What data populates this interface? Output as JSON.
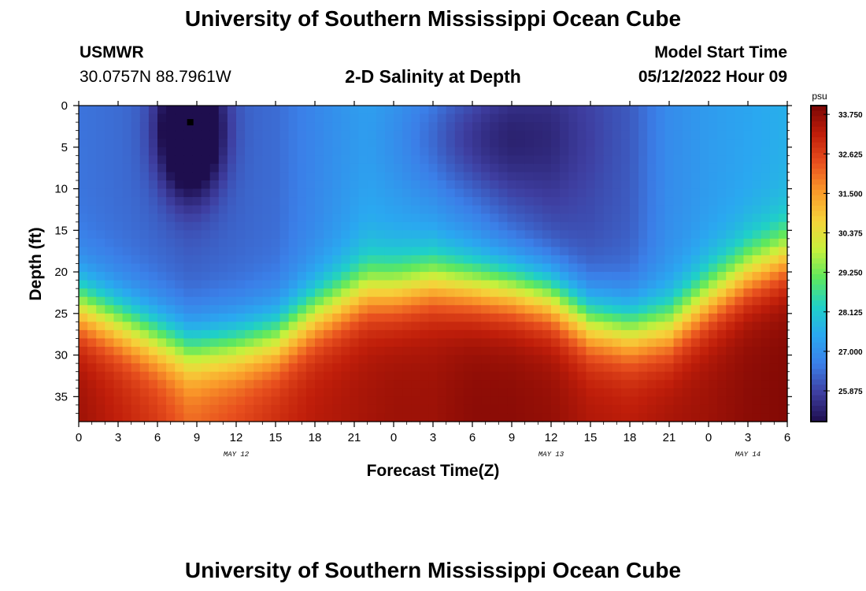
{
  "page": {
    "title_top": "University of Southern Mississippi Ocean Cube",
    "title_bottom": "University of Southern Mississippi Ocean Cube",
    "station": "USMWR",
    "coords": "30.0757N  88.7961W",
    "subtitle": "2-D Salinity at Depth",
    "model_start_label": "Model Start Time",
    "model_start_value": "05/12/2022 Hour 09"
  },
  "chart_data": {
    "type": "heatmap",
    "title": "2-D Salinity at Depth",
    "xlabel": "Forecast Time(Z)",
    "ylabel": "Depth (ft)",
    "x_tick_labels": [
      "0",
      "3",
      "6",
      "9",
      "12",
      "15",
      "18",
      "21",
      "0",
      "3",
      "6",
      "9",
      "12",
      "15",
      "18",
      "21",
      "0",
      "3",
      "6"
    ],
    "x_range_hours": [
      0,
      54
    ],
    "date_labels": [
      {
        "text": "MAY 12",
        "hour": 12
      },
      {
        "text": "MAY 13",
        "hour": 36
      },
      {
        "text": "MAY 14",
        "hour": 51
      }
    ],
    "y_ticks": [
      0,
      5,
      10,
      15,
      20,
      25,
      30,
      35
    ],
    "ylim": [
      0,
      38
    ],
    "y_inverted": true,
    "colorbar": {
      "unit": "psu",
      "min": 25.0,
      "max": 34.0,
      "tick_values": [
        25.875,
        27.0,
        28.125,
        29.25,
        30.375,
        31.5,
        32.625,
        33.75
      ],
      "tick_labels": [
        "25.875",
        "27.000",
        "28.125",
        "29.250",
        "30.375",
        "31.500",
        "32.625",
        "33.750"
      ],
      "colors": [
        "#1e0e4e",
        "#3e3ea0",
        "#3b7fe8",
        "#2aa8f0",
        "#1fd0c8",
        "#5ee85e",
        "#c8f03c",
        "#f6d23a",
        "#fa9a2a",
        "#e8501e",
        "#c01e0a",
        "#7a0604"
      ]
    },
    "marker": {
      "hour": 8.5,
      "depth": 2
    },
    "field_model": {
      "hours": [
        0,
        6,
        8.5,
        12,
        15,
        18,
        22,
        24,
        27,
        30,
        33,
        36,
        39,
        42,
        45,
        48,
        51,
        54
      ],
      "interface_depth": [
        24,
        28,
        29.5,
        29,
        28,
        25,
        22,
        22,
        21,
        21.5,
        22,
        23,
        26,
        27,
        26.5,
        23,
        20,
        18
      ],
      "top_salinity": [
        26.5,
        26.3,
        26.2,
        26.3,
        26.4,
        26.8,
        27.4,
        27.3,
        27.1,
        26.7,
        26.2,
        25.9,
        26.0,
        26.2,
        26.9,
        27.2,
        27.4,
        27.6
      ],
      "bottom_salinity": [
        33.6,
        32.8,
        32.2,
        32.6,
        33.0,
        33.3,
        33.5,
        33.6,
        33.6,
        33.8,
        33.8,
        33.7,
        33.4,
        33.3,
        33.5,
        33.6,
        33.8,
        33.9
      ],
      "lens_anomalies": [
        {
          "hour": 8.5,
          "depth": 3,
          "amplitude": -3.2,
          "sigma_hour": 1.6,
          "sigma_depth": 5
        },
        {
          "hour": 30.5,
          "depth": 4,
          "amplitude": -1.0,
          "sigma_hour": 4.5,
          "sigma_depth": 5
        }
      ]
    }
  }
}
